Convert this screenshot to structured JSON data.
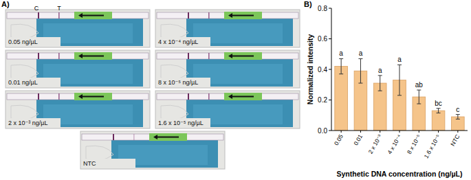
{
  "panel_a": {
    "label": "A)",
    "strip_labels": [
      "C",
      "T"
    ],
    "images": [
      {
        "label": "0.05 ng/µL"
      },
      {
        "label": "4 x 10⁻⁴ ng/µL"
      },
      {
        "label": "0.01 ng/µL"
      },
      {
        "label": "8 x 10⁻⁵ ng/µL"
      },
      {
        "label": "2 x 10⁻³ ng/µL"
      },
      {
        "label": "1.6 x 10⁻⁵ ng/µL"
      },
      {
        "label": "NTC"
      }
    ]
  },
  "panel_b": {
    "label": "B)"
  },
  "chart_data": {
    "type": "bar",
    "x_label": "Synthetic DNA concentration (ng/µL)",
    "y_label": "Normalized intensity",
    "categories": [
      "0.05",
      "0.01",
      "2 x 10⁻³",
      "4 x 10⁻⁴",
      "8 x 10⁻⁵",
      "1.6 x 10⁻⁵",
      "NTC"
    ],
    "values": [
      0.42,
      0.39,
      0.31,
      0.33,
      0.22,
      0.13,
      0.09
    ],
    "errors": [
      0.05,
      0.08,
      0.05,
      0.1,
      0.045,
      0.015,
      0.015
    ],
    "letters": [
      "a",
      "a",
      "a",
      "a",
      "ab",
      "bc",
      "c"
    ],
    "color": "#f5c48a",
    "ylim": [
      0,
      0.8
    ],
    "yticks": [
      {
        "value": 0,
        "label": "0.0"
      },
      0.2,
      0.4,
      0.6,
      0.8
    ],
    "grid": false
  }
}
